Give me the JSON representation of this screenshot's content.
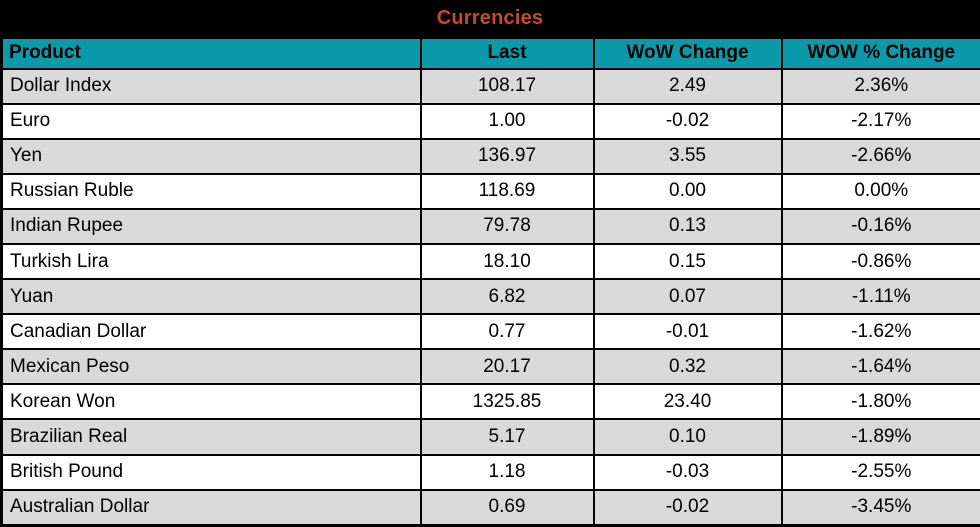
{
  "title": "Currencies",
  "colors": {
    "title_text": "#C84A2E",
    "panel_bg": "#000000",
    "header_bg": "#0B9AA9",
    "header_text": "#000000",
    "row_alt_bg": "#D9D9D9",
    "row_bg": "#FFFFFF",
    "cell_text": "#000000",
    "border": "#000000"
  },
  "chart_data": {
    "type": "table",
    "title": "Currencies",
    "columns": [
      "Product",
      "Last",
      "WoW Change",
      "WOW % Change"
    ],
    "rows": [
      [
        "Dollar Index",
        "108.17",
        "2.49",
        "2.36%"
      ],
      [
        "Euro",
        "1.00",
        "-0.02",
        "-2.17%"
      ],
      [
        "Yen",
        "136.97",
        "3.55",
        "-2.66%"
      ],
      [
        "Russian Ruble",
        "118.69",
        "0.00",
        "0.00%"
      ],
      [
        "Indian Rupee",
        "79.78",
        "0.13",
        "-0.16%"
      ],
      [
        "Turkish Lira",
        "18.10",
        "0.15",
        "-0.86%"
      ],
      [
        "Yuan",
        "6.82",
        "0.07",
        "-1.11%"
      ],
      [
        "Canadian Dollar",
        "0.77",
        "-0.01",
        "-1.62%"
      ],
      [
        "Mexican Peso",
        "20.17",
        "0.32",
        "-1.64%"
      ],
      [
        "Korean Won",
        "1325.85",
        "23.40",
        "-1.80%"
      ],
      [
        "Brazilian Real",
        "5.17",
        "0.10",
        "-1.89%"
      ],
      [
        "British Pound",
        "1.18",
        "-0.03",
        "-2.55%"
      ],
      [
        "Australian Dollar",
        "0.69",
        "-0.02",
        "-3.45%"
      ]
    ]
  }
}
